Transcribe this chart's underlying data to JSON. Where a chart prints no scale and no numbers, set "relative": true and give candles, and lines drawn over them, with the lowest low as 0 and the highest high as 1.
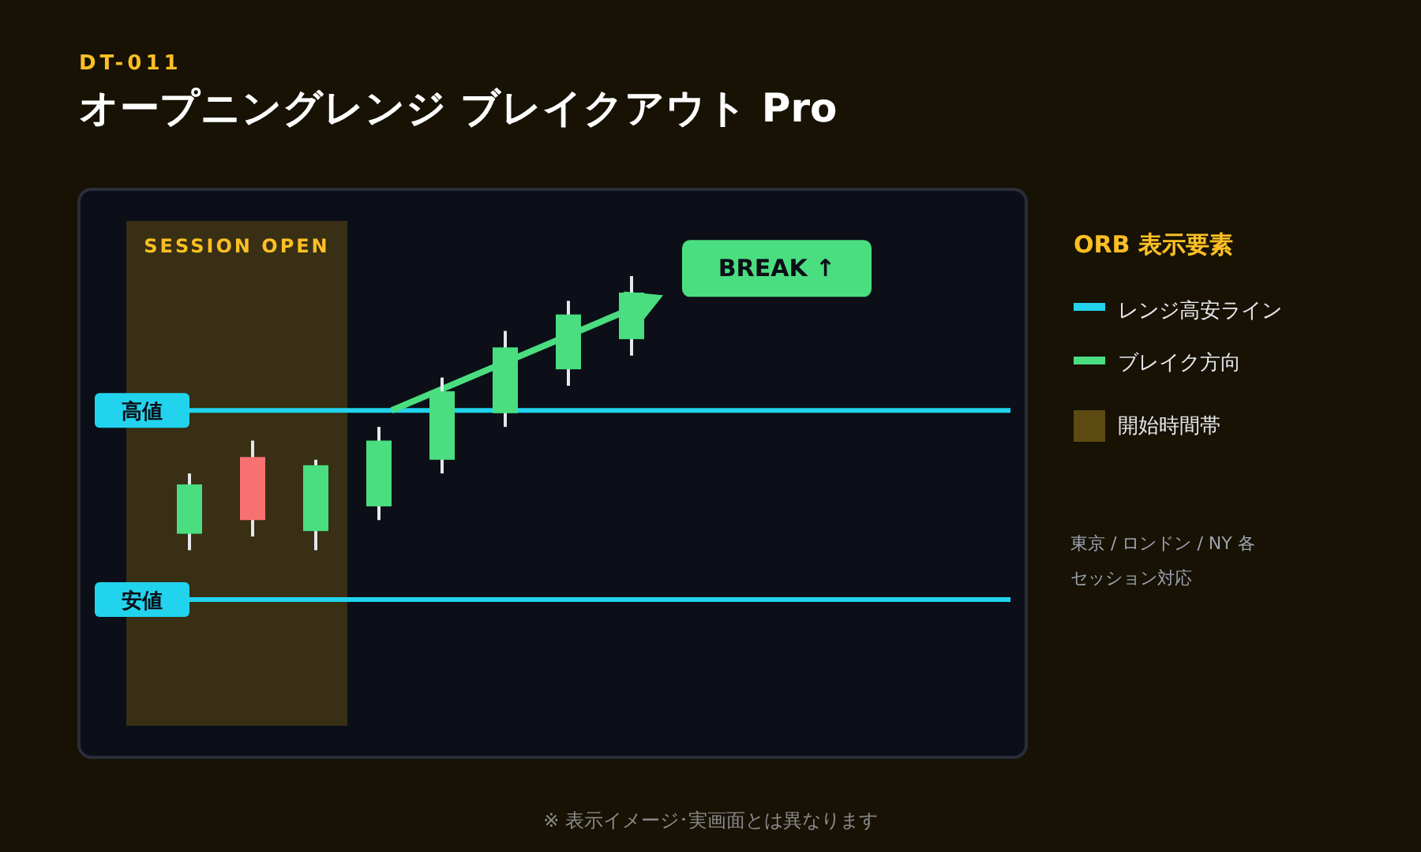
{
  "chart_data": {
    "type": "candlestick",
    "title": "オープニングレンジ ブレイクアウト Pro",
    "legend_title": "ORB 表示要素",
    "relative": true,
    "categories": [
      null,
      null,
      null,
      null,
      null,
      null,
      null,
      null
    ],
    "ohlc": [
      [
        0.06,
        0.28,
        0,
        0.24
      ],
      [
        0.34,
        0.4,
        0.05,
        0.11
      ],
      [
        0.07,
        0.33,
        0,
        0.31
      ],
      [
        0.16,
        0.45,
        0.11,
        0.4
      ],
      [
        0.33,
        0.63,
        0.28,
        0.58
      ],
      [
        0.5,
        0.8,
        0.45,
        0.74
      ],
      [
        0.66,
        0.91,
        0.6,
        0.86
      ],
      [
        0.77,
        1,
        0.71,
        0.94
      ]
    ],
    "ref_lines": [
      {
        "axis": "y",
        "value": 0.51,
        "label": "高値",
        "color": "#22d3ee"
      },
      {
        "axis": "y",
        "value": -0.18,
        "label": "安値",
        "color": "#22d3ee"
      }
    ],
    "annotations": [
      "DT-011",
      "BREAK ↑",
      "SESSION OPEN",
      "レンジ高安ライン",
      "開始時間帯",
      "東京 / ロンドン / NY 各セッション対応",
      "※ 表示イメージ･実画面とは異なります",
      "ブレイク方向"
    ]
  }
}
